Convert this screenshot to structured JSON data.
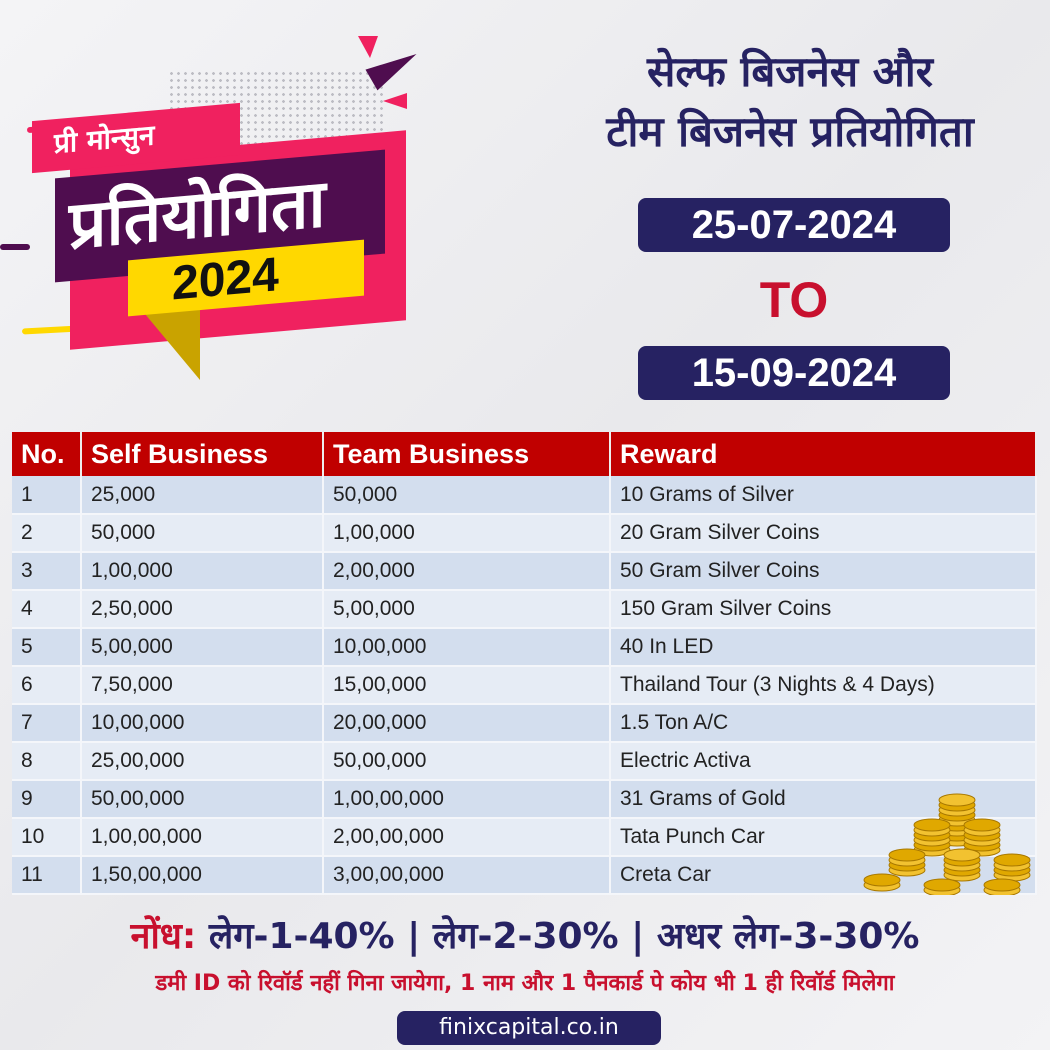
{
  "banner": {
    "small_label": "प्री मोन्सुन",
    "main_label": "प्रतियोगिता",
    "year": "2024"
  },
  "header": {
    "title_line1": "सेल्फ बिजनेस और",
    "title_line2": "टीम बिजनेस प्रतियोगिता",
    "start_date": "25-07-2024",
    "to": "TO",
    "end_date": "15-09-2024"
  },
  "table": {
    "columns": [
      "No.",
      "Self Business",
      "Team Business",
      "Reward"
    ],
    "rows": [
      [
        "1",
        "25,000",
        "50,000",
        "10 Grams of Silver"
      ],
      [
        "2",
        "50,000",
        "1,00,000",
        "20 Gram Silver Coins"
      ],
      [
        "3",
        "1,00,000",
        "2,00,000",
        "50 Gram Silver Coins"
      ],
      [
        "4",
        "2,50,000",
        "5,00,000",
        "150 Gram Silver Coins"
      ],
      [
        "5",
        "5,00,000",
        "10,00,000",
        "40 In LED"
      ],
      [
        "6",
        "7,50,000",
        "15,00,000",
        "Thailand Tour (3 Nights & 4 Days)"
      ],
      [
        "7",
        "10,00,000",
        "20,00,000",
        "1.5 Ton A/C"
      ],
      [
        "8",
        "25,00,000",
        "50,00,000",
        "Electric Activa"
      ],
      [
        "9",
        "50,00,000",
        "1,00,00,000",
        "31 Grams of Gold"
      ],
      [
        "10",
        "1,00,00,000",
        "2,00,00,000",
        "Tata Punch Car"
      ],
      [
        "11",
        "1,50,00,000",
        "3,00,00,000",
        "Creta Car"
      ]
    ]
  },
  "footer": {
    "note_label": "नोंध:",
    "note_text": " लेग-1-40% | लेग-2-30% | अधर लेग-3-30%",
    "rule": "डमी ID को रिवॉर्ड नहीं गिना जायेगा, 1 नाम और 1 पैनकार्ड पे कोय भी 1 ही रिवॉर्ड मिलेगा",
    "website": "finixcapital.co.in"
  },
  "colors": {
    "navy": "#262262",
    "red": "#c8102e",
    "header_red": "#c00000",
    "pink": "#f0215f",
    "purple": "#4f0d4f",
    "yellow": "#ffd800"
  },
  "icons": [
    "gold-coins-icon"
  ]
}
